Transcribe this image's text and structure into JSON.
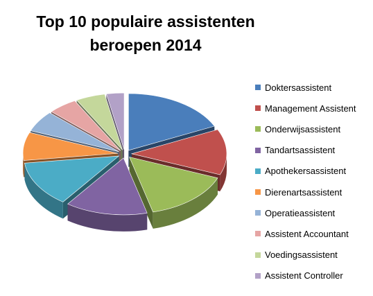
{
  "chart_data": {
    "type": "pie",
    "title_lines": [
      "Top 10 populaire assistenten",
      "beroepen 2014"
    ],
    "legend_position": "right",
    "exploded": true,
    "three_d": true,
    "categories": [
      "Doktersassistent",
      "Management Assistent",
      "Onderwijsassistent",
      "Tandartsassistent",
      "Apothekersassistent",
      "Dierenartsassistent",
      "Operatieassistent",
      "Assistent Accountant",
      "Voedingsassistent",
      "Assistent Controller"
    ],
    "values": [
      18,
      13,
      15,
      14,
      13,
      8,
      6,
      5,
      5,
      3
    ],
    "colors": [
      "#4a7ebb",
      "#c0504d",
      "#9bbb59",
      "#8064a2",
      "#4bacc6",
      "#f79646",
      "#95b3d7",
      "#e6a5a4",
      "#c4d79b",
      "#b2a1c7"
    ]
  }
}
